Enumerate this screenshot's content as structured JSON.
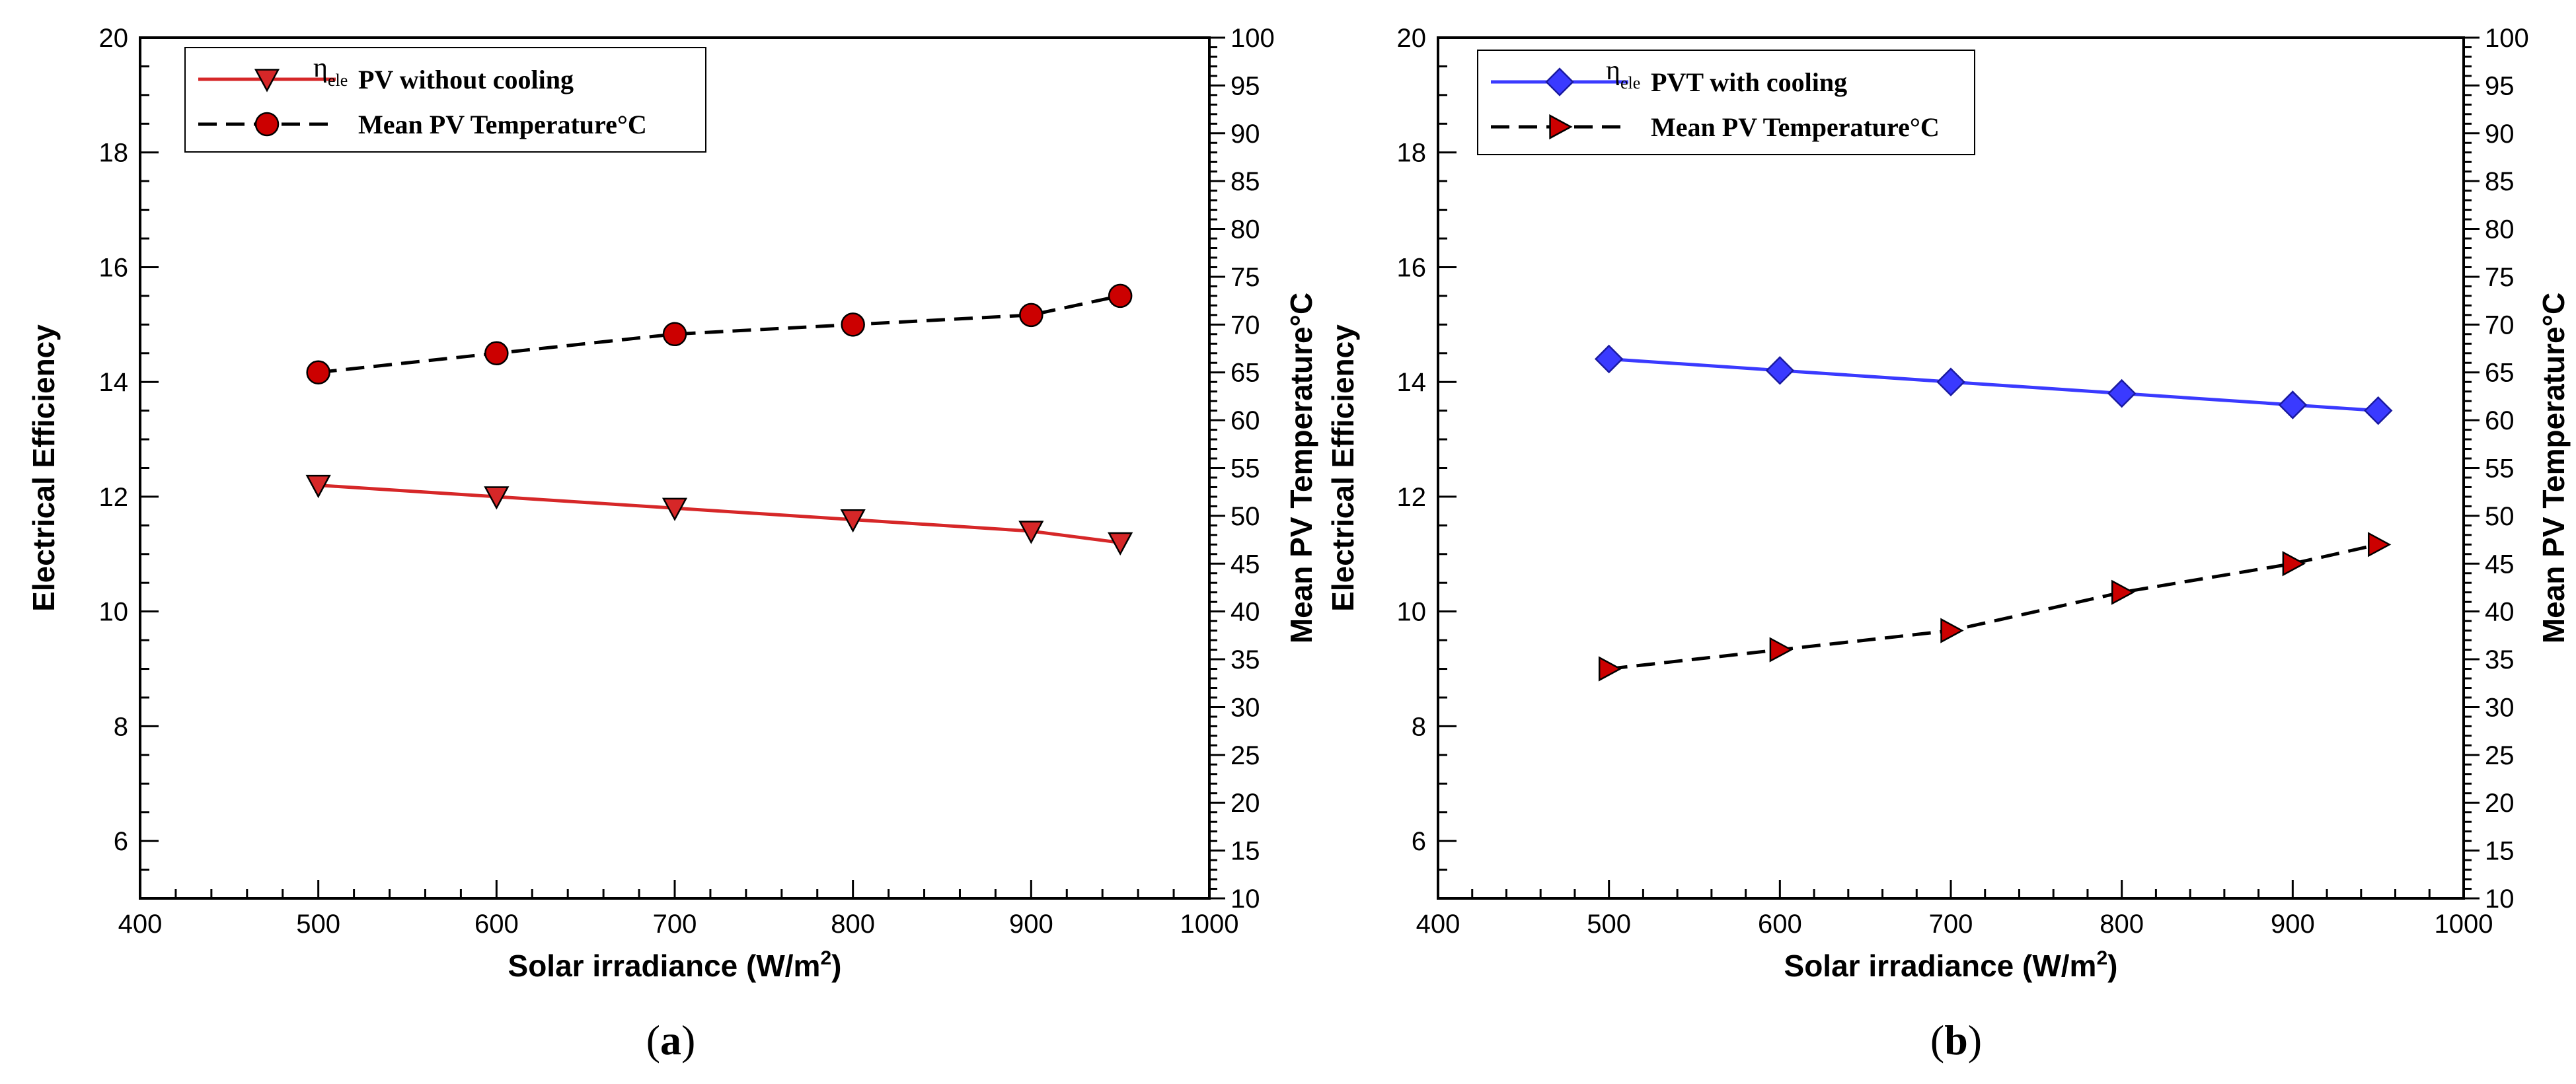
{
  "chart_data": [
    {
      "type": "line",
      "panel_label": "a",
      "xlabel": "Solar irradiance (W/m",
      "xlabel_sup": "2",
      "xlabel_end": ")",
      "ylabel": "Electrical Efficiency",
      "y2label": "Mean PV  Temperature°C",
      "xlim": [
        400,
        1000
      ],
      "ylim": [
        5,
        20
      ],
      "y2lim": [
        10,
        100
      ],
      "xticks": [
        400,
        500,
        600,
        700,
        800,
        900,
        1000
      ],
      "yticks": [
        6,
        8,
        10,
        12,
        14,
        16,
        18,
        20
      ],
      "y2ticks": [
        10,
        15,
        20,
        25,
        30,
        35,
        40,
        45,
        50,
        55,
        60,
        65,
        70,
        75,
        80,
        85,
        90,
        95,
        100
      ],
      "grid": false,
      "legend_position": "top-left",
      "series": [
        {
          "name": "PV without cooling",
          "legend_prefix": "η",
          "legend_sub": "ele",
          "axis": "left",
          "color": "#d62728",
          "line_style": "solid",
          "marker": "triangle-down",
          "x": [
            500,
            600,
            700,
            800,
            900,
            950
          ],
          "values": [
            12.2,
            12.0,
            11.8,
            11.6,
            11.4,
            11.2
          ]
        },
        {
          "name": "Mean PV  Temperature°C",
          "axis": "right",
          "color": "#000000",
          "marker_color": "#cc0000",
          "line_style": "dashed",
          "marker": "circle",
          "x": [
            500,
            600,
            700,
            800,
            900,
            950
          ],
          "values": [
            65,
            67,
            69,
            70,
            71,
            73
          ]
        }
      ]
    },
    {
      "type": "line",
      "panel_label": "b",
      "xlabel": "Solar irradiance (W/m",
      "xlabel_sup": "2",
      "xlabel_end": ")",
      "ylabel": "Electrical Efficiency",
      "y2label": "Mean PV  Temperature°C",
      "xlim": [
        400,
        1000
      ],
      "ylim": [
        5,
        20
      ],
      "y2lim": [
        10,
        100
      ],
      "xticks": [
        400,
        500,
        600,
        700,
        800,
        900,
        1000
      ],
      "yticks": [
        6,
        8,
        10,
        12,
        14,
        16,
        18,
        20
      ],
      "y2ticks": [
        10,
        15,
        20,
        25,
        30,
        35,
        40,
        45,
        50,
        55,
        60,
        65,
        70,
        75,
        80,
        85,
        90,
        95,
        100
      ],
      "grid": false,
      "legend_position": "top-left",
      "series": [
        {
          "name": "PVT with cooling",
          "legend_prefix": "η",
          "legend_sub": "ele",
          "axis": "left",
          "color": "#3a3aff",
          "line_style": "solid",
          "marker": "diamond",
          "x": [
            500,
            600,
            700,
            800,
            900,
            950
          ],
          "values": [
            14.4,
            14.2,
            14.0,
            13.8,
            13.6,
            13.5
          ]
        },
        {
          "name": "Mean PV  Temperature°C",
          "axis": "right",
          "color": "#000000",
          "marker_color": "#cc0000",
          "line_style": "dashed",
          "marker": "triangle-right",
          "x": [
            500,
            600,
            700,
            800,
            900,
            950
          ],
          "values": [
            34,
            36,
            38,
            42,
            45,
            47
          ]
        }
      ]
    }
  ]
}
